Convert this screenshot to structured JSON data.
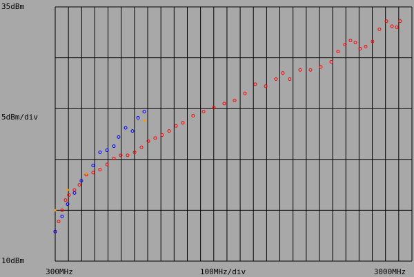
{
  "chart_data": {
    "type": "scatter",
    "ylabel": "5dBm/div",
    "xlabel": "100MHz/div",
    "xlim": [
      300,
      3000
    ],
    "ylim": [
      10,
      35
    ],
    "xticks": [
      {
        "value": 300,
        "label": "300MHz"
      },
      {
        "value": 3000,
        "label": "3000MHz"
      }
    ],
    "yticks": [
      {
        "value": 35,
        "label": "35dBm"
      },
      {
        "value": 10,
        "label": "10dBm"
      }
    ],
    "xgrid": [
      300,
      400,
      500,
      600,
      700,
      800,
      900,
      1000,
      1100,
      1200,
      1300,
      1400,
      1500,
      1600,
      1700,
      1800,
      1900,
      2000,
      2100,
      2200,
      2300,
      2400,
      2500,
      2600,
      2700,
      2800,
      2900,
      3000
    ],
    "ygrid": [
      10,
      15,
      20,
      25,
      30,
      35
    ],
    "grid": true,
    "series": [
      {
        "color": "#ff0000",
        "x": [
          300,
          326,
          352,
          378,
          404,
          446,
          483,
          535,
          587,
          639,
          692,
          744,
          796,
          848,
          901,
          953,
          1005,
          1057,
          1109,
          1162,
          1214,
          1266,
          1344,
          1423,
          1501,
          1579,
          1658,
          1736,
          1814,
          1893,
          1971,
          2023,
          2075,
          2154,
          2232,
          2310,
          2389,
          2441,
          2493,
          2535,
          2572,
          2608,
          2650,
          2702,
          2754,
          2807,
          2849,
          2885,
          2911
        ],
        "values": [
          12.9,
          13.9,
          15.0,
          16.0,
          16.5,
          17.0,
          17.5,
          18.5,
          18.7,
          19.0,
          19.5,
          20.1,
          20.4,
          20.4,
          20.7,
          21.2,
          21.8,
          22.1,
          22.4,
          22.8,
          23.3,
          23.6,
          24.3,
          24.7,
          25.1,
          25.5,
          25.8,
          26.5,
          27.4,
          27.2,
          27.9,
          28.5,
          27.9,
          28.8,
          28.8,
          29.1,
          29.6,
          30.6,
          31.3,
          31.7,
          31.5,
          30.9,
          31.1,
          31.6,
          32.8,
          33.6,
          33.1,
          33.0,
          33.6
        ]
      },
      {
        "color": "#0000ff",
        "x": [
          300,
          352,
          394,
          446,
          498,
          587,
          639,
          692,
          744,
          780,
          833,
          885,
          927,
          974
        ],
        "values": [
          12.9,
          14.4,
          15.6,
          16.7,
          17.9,
          19.4,
          20.7,
          20.9,
          21.3,
          22.2,
          23.1,
          22.8,
          24.1,
          24.7
        ]
      },
      {
        "color": "#ff9900",
        "x": [
          300,
          394,
          535,
          974
        ],
        "values": [
          15.0,
          17.0,
          18.6,
          23.8
        ]
      }
    ]
  }
}
